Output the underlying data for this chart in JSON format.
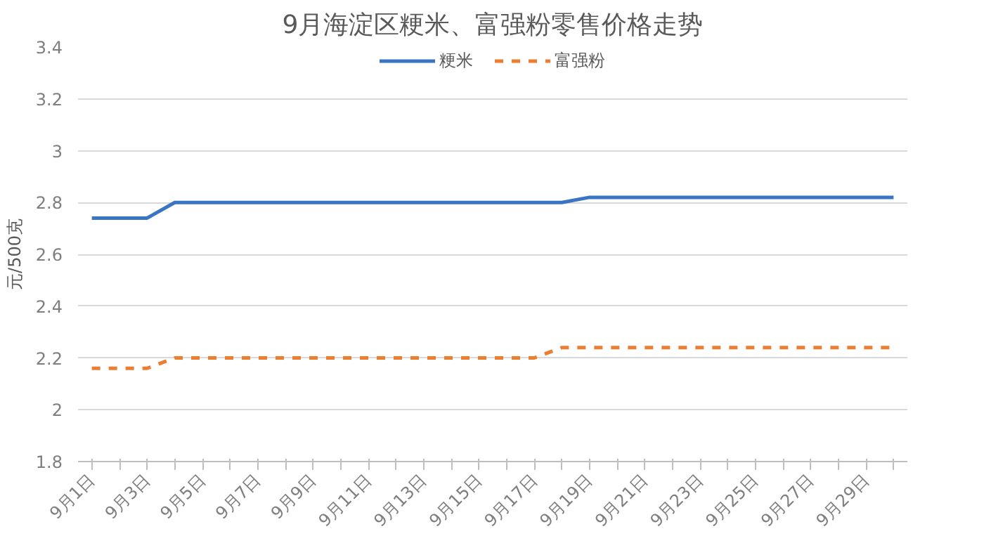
{
  "chart_data": {
    "type": "line",
    "title": "9月海淀区粳米、富强粉零售价格走势",
    "ylabel": "元/500克",
    "categories": [
      "9月1日",
      null,
      "9月3日",
      null,
      "9月5日",
      null,
      "9月7日",
      null,
      "9月9日",
      null,
      "9月11日",
      null,
      "9月13日",
      null,
      "9月15日",
      null,
      "9月17日",
      null,
      "9月19日",
      null,
      "9月21日",
      null,
      "9月23日",
      null,
      "9月25日",
      null,
      "9月27日",
      null,
      "9月29日",
      null
    ],
    "series": [
      {
        "name": "粳米",
        "color": "#3a75c4",
        "line_style": "solid",
        "values": [
          2.74,
          2.74,
          2.74,
          2.8,
          2.8,
          2.8,
          2.8,
          2.8,
          2.8,
          2.8,
          2.8,
          2.8,
          2.8,
          2.8,
          2.8,
          2.8,
          2.8,
          2.8,
          2.82,
          2.82,
          2.82,
          2.82,
          2.82,
          2.82,
          2.82,
          2.82,
          2.82,
          2.82,
          2.82,
          2.82
        ]
      },
      {
        "name": "富强粉",
        "color": "#ed7d31",
        "line_style": "dashed",
        "values": [
          2.16,
          2.16,
          2.16,
          2.2,
          2.2,
          2.2,
          2.2,
          2.2,
          2.2,
          2.2,
          2.2,
          2.2,
          2.2,
          2.2,
          2.2,
          2.2,
          2.2,
          2.24,
          2.24,
          2.24,
          2.24,
          2.24,
          2.24,
          2.24,
          2.24,
          2.24,
          2.24,
          2.24,
          2.24,
          2.24
        ]
      }
    ],
    "ylim": [
      1.8,
      3.4
    ],
    "yticks": [
      1.8,
      2,
      2.2,
      2.4,
      2.6,
      2.8,
      3,
      3.2,
      3.4
    ],
    "grid": "y",
    "legend": "top",
    "marker": "none"
  }
}
